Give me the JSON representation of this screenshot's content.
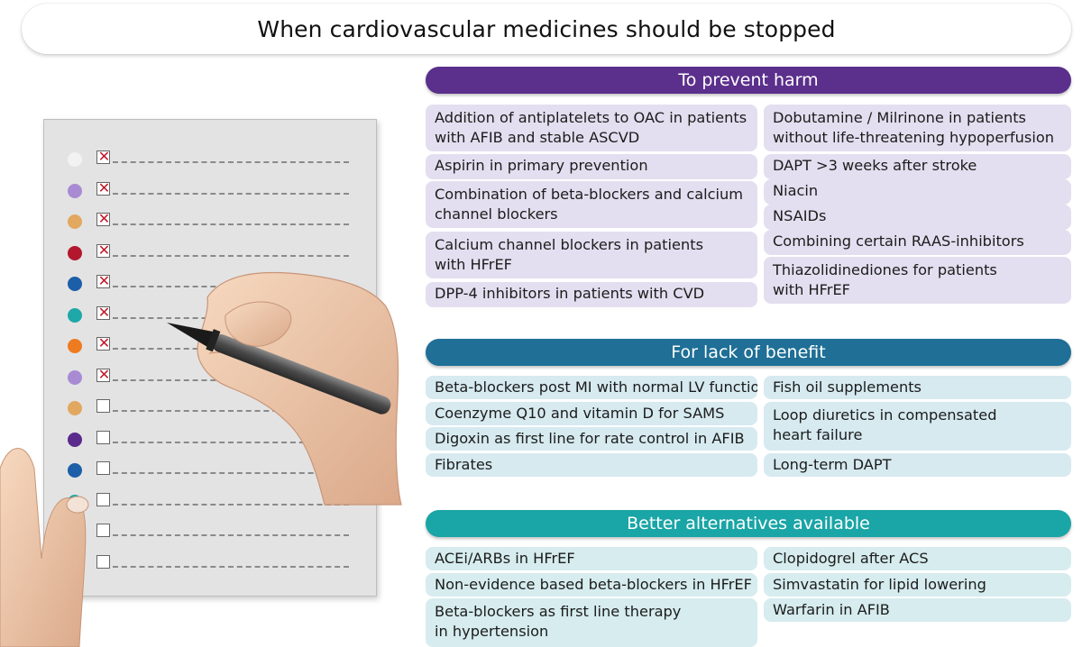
{
  "title": "When cardiovascular medicines should be stopped",
  "colors": {
    "harm_header": "#5b2f8c",
    "benefit_header": "#1f6f96",
    "alt_header": "#1aa5a6"
  },
  "sections": [
    {
      "header": "To prevent harm",
      "left": [
        "Addition of antiplatelets to OAC in patients\nwith AFIB and stable ASCVD",
        "Aspirin in primary prevention",
        "Combination of beta-blockers and calcium\nchannel blockers",
        "Calcium channel blockers in patients\nwith HFrEF",
        "DPP-4 inhibitors in patients with CVD"
      ],
      "right": [
        "Dobutamine / Milrinone in patients\nwithout life-threatening hypoperfusion",
        "DAPT >3 weeks after stroke",
        "Niacin",
        "NSAIDs",
        "Combining certain RAAS-inhibitors",
        "Thiazolidinediones for patients\nwith HFrEF"
      ]
    },
    {
      "header": "For lack of benefit",
      "left": [
        "Beta-blockers post MI with normal LV function",
        "Coenzyme Q10 and vitamin D for SAMS",
        "Digoxin as first line for rate control in AFIB",
        "Fibrates"
      ],
      "right": [
        "Fish oil supplements",
        "Loop diuretics in compensated\nheart failure",
        "Long-term DAPT"
      ]
    },
    {
      "header": "Better alternatives available",
      "left": [
        "ACEi/ARBs in HFrEF",
        "Non-evidence based beta-blockers in HFrEF",
        "Beta-blockers as first line therapy\nin hypertension"
      ],
      "right": [
        "Clopidogrel after ACS",
        "Simvastatin for lipid lowering",
        "Warfarin in AFIB"
      ]
    }
  ],
  "checklist": [
    {
      "color": "#f2f2f2",
      "checked": true
    },
    {
      "color": "#a98bd4",
      "checked": true
    },
    {
      "color": "#e2a860",
      "checked": true
    },
    {
      "color": "#b3172e",
      "checked": true
    },
    {
      "color": "#1d5ea8",
      "checked": true
    },
    {
      "color": "#1fa8a8",
      "checked": true
    },
    {
      "color": "#ee7b20",
      "checked": true
    },
    {
      "color": "#a98bd4",
      "checked": true
    },
    {
      "color": "#e2a860",
      "checked": false
    },
    {
      "color": "#5a2a8c",
      "checked": false
    },
    {
      "color": "#1d5ea8",
      "checked": false
    },
    {
      "color": "#1fa8a8",
      "checked": false
    },
    {
      "color": "#f2f2f2",
      "checked": false
    },
    {
      "color": "#f2f2f2",
      "checked": false
    }
  ]
}
